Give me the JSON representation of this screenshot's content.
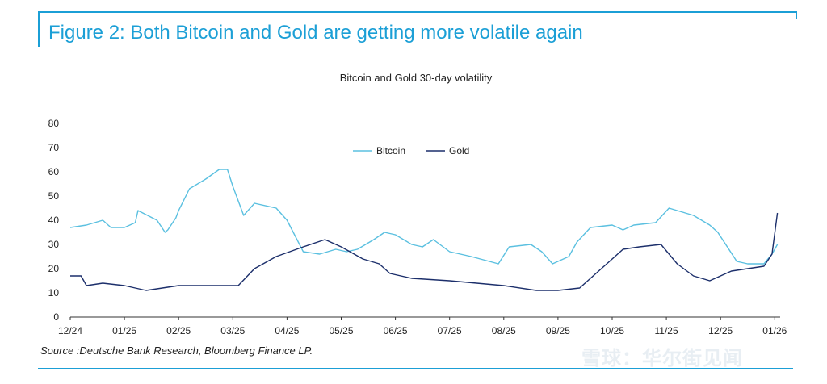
{
  "figure_title": "Figure 2: Both Bitcoin and Gold are getting more volatile again",
  "source": "Source :Deutsche Bank Research, Bloomberg Finance LP.",
  "watermark": "雪球：华尔街见闻",
  "colors": {
    "accent": "#1b9fd6",
    "bitcoin": "#5bc0e0",
    "gold": "#1c2f6b"
  },
  "chart_data": {
    "type": "line",
    "title": "Bitcoin and Gold 30-day volatility",
    "xlabel": "",
    "ylabel": "",
    "ylim": [
      0,
      80
    ],
    "yticks": [
      0,
      10,
      20,
      30,
      40,
      50,
      60,
      70,
      80
    ],
    "xlim": [
      0,
      13.1
    ],
    "xticks": [
      0,
      1,
      2,
      3,
      4,
      5,
      6,
      7,
      8,
      9,
      10,
      11,
      12,
      13
    ],
    "xtick_labels": [
      "12/24",
      "01/25",
      "02/25",
      "03/25",
      "04/25",
      "05/25",
      "06/25",
      "07/25",
      "08/25",
      "09/25",
      "10/25",
      "11/25",
      "12/25",
      "01/26"
    ],
    "legend_position": "top-center",
    "series": [
      {
        "name": "Bitcoin",
        "x": [
          0,
          0.3,
          0.6,
          0.75,
          1.0,
          1.2,
          1.25,
          1.6,
          1.75,
          1.8,
          1.95,
          2.0,
          2.2,
          2.5,
          2.75,
          2.9,
          3.0,
          3.2,
          3.4,
          3.8,
          4.0,
          4.3,
          4.6,
          4.9,
          5.1,
          5.3,
          5.6,
          5.8,
          6.0,
          6.3,
          6.5,
          6.7,
          7.0,
          7.4,
          7.9,
          8.1,
          8.5,
          8.7,
          8.9,
          9.2,
          9.35,
          9.6,
          10.0,
          10.2,
          10.4,
          10.8,
          11.05,
          11.5,
          11.8,
          11.95,
          12.3,
          12.5,
          12.8,
          12.95,
          13.05
        ],
        "values": [
          37,
          38,
          40,
          37,
          37,
          39,
          44,
          40,
          35,
          36,
          41,
          44,
          53,
          57,
          61,
          61,
          54,
          42,
          47,
          45,
          40,
          27,
          26,
          28,
          27,
          28,
          32,
          35,
          34,
          30,
          29,
          32,
          27,
          25,
          22,
          29,
          30,
          27,
          22,
          25,
          31,
          37,
          38,
          36,
          38,
          39,
          45,
          42,
          38,
          35,
          23,
          22,
          22,
          26,
          30
        ]
      },
      {
        "name": "Gold",
        "x": [
          0,
          0.2,
          0.3,
          0.6,
          1.0,
          1.4,
          2.0,
          2.7,
          3.1,
          3.4,
          3.8,
          4.3,
          4.7,
          5.0,
          5.4,
          5.7,
          5.9,
          6.3,
          7.0,
          7.5,
          8.0,
          8.6,
          9.0,
          9.4,
          9.8,
          10.2,
          10.5,
          10.9,
          11.2,
          11.5,
          11.8,
          12.0,
          12.2,
          12.5,
          12.8,
          12.95,
          13.05
        ],
        "values": [
          17,
          17,
          13,
          14,
          13,
          11,
          13,
          13,
          13,
          20,
          25,
          29,
          32,
          29,
          24,
          22,
          18,
          16,
          15,
          14,
          13,
          11,
          11,
          12,
          20,
          28,
          29,
          30,
          22,
          17,
          15,
          17,
          19,
          20,
          21,
          26,
          43
        ]
      }
    ]
  }
}
